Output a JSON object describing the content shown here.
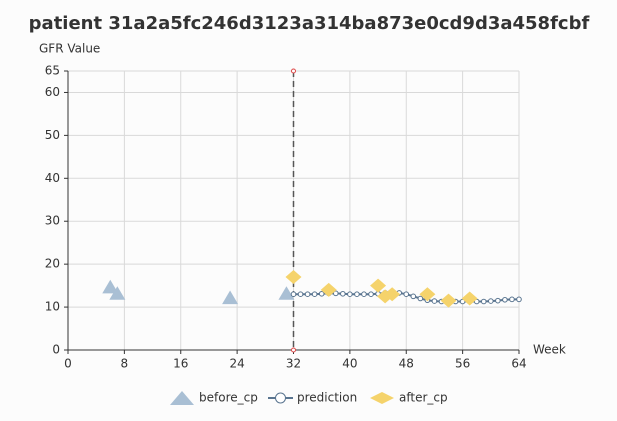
{
  "chart_data": {
    "type": "scatter",
    "title": "patient 31a2a5fc246d3123a314ba873e0cd9d3a458fcbf",
    "y_label": "GFR Value",
    "x_label": "Week",
    "xlim": [
      0,
      64
    ],
    "xticks": [
      0,
      8,
      16,
      24,
      32,
      40,
      48,
      56,
      64
    ],
    "ylim": [
      0,
      65
    ],
    "yticks": [
      0,
      10,
      20,
      30,
      40,
      50,
      60,
      65
    ],
    "grid": true,
    "legend": "bottom",
    "cp_line": {
      "x": 32,
      "color": "#555555"
    },
    "series": [
      {
        "name": "before_cp",
        "marker": "triangle",
        "color": "#a9bfd4",
        "x": [
          6,
          7,
          23,
          31
        ],
        "values": [
          14.5,
          13,
          12,
          13
        ]
      },
      {
        "name": "prediction",
        "marker": "line",
        "color": "#5a7590",
        "x": [
          32,
          33,
          34,
          35,
          36,
          37,
          38,
          39,
          40,
          41,
          42,
          43,
          44,
          45,
          46,
          47,
          48,
          49,
          50,
          51,
          52,
          53,
          54,
          55,
          56,
          57,
          58,
          59,
          60,
          61,
          62,
          63,
          64
        ],
        "values": [
          13,
          13,
          13,
          13,
          13.1,
          13.2,
          13.2,
          13.1,
          13,
          13,
          13,
          13,
          13.1,
          13.3,
          13.4,
          13.3,
          13,
          12.5,
          12,
          11.6,
          11.4,
          11.3,
          11.3,
          11.3,
          11.3,
          11.3,
          11.3,
          11.3,
          11.4,
          11.5,
          11.7,
          11.8,
          11.8
        ]
      },
      {
        "name": "after_cp",
        "marker": "diamond",
        "color": "#f5d36b",
        "x": [
          32,
          37,
          44,
          45,
          46,
          51,
          54,
          57
        ],
        "values": [
          17,
          14,
          15,
          12.5,
          13,
          13,
          11.5,
          12
        ]
      }
    ]
  }
}
